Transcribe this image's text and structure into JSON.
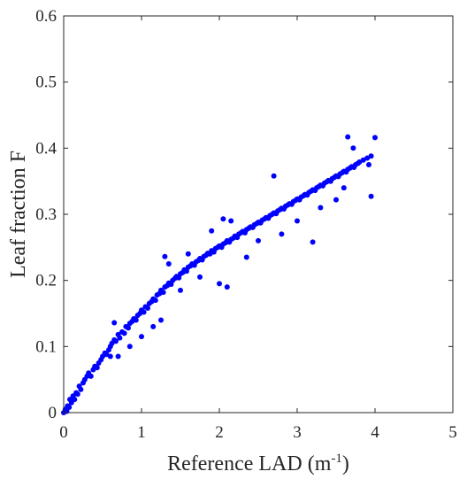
{
  "chart_data": {
    "type": "scatter",
    "title": "",
    "xlabel": "Reference LAD (m",
    "xlabel_sup": "-1",
    "xlabel_close": ")",
    "ylabel": "Leaf fraction F",
    "xlim": [
      0,
      5
    ],
    "ylim": [
      0,
      0.6
    ],
    "xticks": [
      "0",
      "1",
      "2",
      "3",
      "4",
      "5"
    ],
    "yticks": [
      "0",
      "0.1",
      "0.2",
      "0.3",
      "0.4",
      "0.5",
      "0.6"
    ],
    "grid": false,
    "marker_color": "#0000ff",
    "series": [
      {
        "points": [
          [
            0.0,
            0.0
          ],
          [
            0.02,
            0.005
          ],
          [
            0.04,
            0.002
          ],
          [
            0.05,
            0.01
          ],
          [
            0.07,
            0.008
          ],
          [
            0.08,
            0.02
          ],
          [
            0.1,
            0.015
          ],
          [
            0.12,
            0.025
          ],
          [
            0.14,
            0.02
          ],
          [
            0.16,
            0.03
          ],
          [
            0.18,
            0.028
          ],
          [
            0.2,
            0.04
          ],
          [
            0.22,
            0.035
          ],
          [
            0.25,
            0.045
          ],
          [
            0.27,
            0.05
          ],
          [
            0.3,
            0.055
          ],
          [
            0.32,
            0.06
          ],
          [
            0.35,
            0.055
          ],
          [
            0.38,
            0.065
          ],
          [
            0.4,
            0.07
          ],
          [
            0.43,
            0.068
          ],
          [
            0.45,
            0.075
          ],
          [
            0.48,
            0.08
          ],
          [
            0.5,
            0.085
          ],
          [
            0.53,
            0.09
          ],
          [
            0.55,
            0.088
          ],
          [
            0.58,
            0.095
          ],
          [
            0.6,
            0.1
          ],
          [
            0.62,
            0.105
          ],
          [
            0.65,
            0.11
          ],
          [
            0.67,
            0.108
          ],
          [
            0.7,
            0.118
          ],
          [
            0.72,
            0.113
          ],
          [
            0.75,
            0.122
          ],
          [
            0.78,
            0.12
          ],
          [
            0.8,
            0.13
          ],
          [
            0.83,
            0.128
          ],
          [
            0.85,
            0.135
          ],
          [
            0.88,
            0.138
          ],
          [
            0.9,
            0.142
          ],
          [
            0.93,
            0.14
          ],
          [
            0.95,
            0.147
          ],
          [
            0.98,
            0.15
          ],
          [
            1.0,
            0.155
          ],
          [
            1.03,
            0.152
          ],
          [
            1.05,
            0.16
          ],
          [
            1.08,
            0.158
          ],
          [
            1.1,
            0.165
          ],
          [
            1.13,
            0.168
          ],
          [
            1.15,
            0.172
          ],
          [
            1.18,
            0.17
          ],
          [
            1.2,
            0.178
          ],
          [
            1.23,
            0.18
          ],
          [
            1.25,
            0.185
          ],
          [
            1.28,
            0.182
          ],
          [
            1.3,
            0.19
          ],
          [
            1.33,
            0.192
          ],
          [
            1.35,
            0.196
          ],
          [
            1.38,
            0.194
          ],
          [
            1.4,
            0.2
          ],
          [
            1.43,
            0.203
          ],
          [
            1.45,
            0.206
          ],
          [
            1.48,
            0.204
          ],
          [
            1.5,
            0.21
          ],
          [
            1.53,
            0.212
          ],
          [
            1.55,
            0.216
          ],
          [
            1.58,
            0.214
          ],
          [
            1.6,
            0.22
          ],
          [
            1.63,
            0.222
          ],
          [
            1.65,
            0.225
          ],
          [
            1.68,
            0.223
          ],
          [
            1.7,
            0.228
          ],
          [
            1.73,
            0.23
          ],
          [
            1.75,
            0.233
          ],
          [
            1.78,
            0.231
          ],
          [
            1.8,
            0.236
          ],
          [
            1.83,
            0.238
          ],
          [
            1.85,
            0.241
          ],
          [
            1.88,
            0.24
          ],
          [
            1.9,
            0.245
          ],
          [
            1.93,
            0.243
          ],
          [
            1.95,
            0.248
          ],
          [
            1.98,
            0.25
          ],
          [
            2.0,
            0.252
          ],
          [
            2.03,
            0.25
          ],
          [
            2.05,
            0.255
          ],
          [
            2.08,
            0.257
          ],
          [
            2.1,
            0.26
          ],
          [
            2.13,
            0.258
          ],
          [
            2.15,
            0.262
          ],
          [
            2.18,
            0.264
          ],
          [
            2.2,
            0.267
          ],
          [
            2.23,
            0.265
          ],
          [
            2.25,
            0.27
          ],
          [
            2.28,
            0.272
          ],
          [
            2.3,
            0.274
          ],
          [
            2.33,
            0.272
          ],
          [
            2.35,
            0.277
          ],
          [
            2.38,
            0.279
          ],
          [
            2.4,
            0.281
          ],
          [
            2.43,
            0.28
          ],
          [
            2.45,
            0.284
          ],
          [
            2.48,
            0.286
          ],
          [
            2.5,
            0.288
          ],
          [
            2.53,
            0.287
          ],
          [
            2.55,
            0.291
          ],
          [
            2.58,
            0.293
          ],
          [
            2.6,
            0.295
          ],
          [
            2.63,
            0.294
          ],
          [
            2.65,
            0.298
          ],
          [
            2.68,
            0.3
          ],
          [
            2.7,
            0.302
          ],
          [
            2.73,
            0.301
          ],
          [
            2.75,
            0.305
          ],
          [
            2.78,
            0.307
          ],
          [
            2.8,
            0.309
          ],
          [
            2.83,
            0.308
          ],
          [
            2.85,
            0.312
          ],
          [
            2.88,
            0.314
          ],
          [
            2.9,
            0.316
          ],
          [
            2.93,
            0.315
          ],
          [
            2.95,
            0.319
          ],
          [
            2.98,
            0.321
          ],
          [
            3.0,
            0.323
          ],
          [
            3.03,
            0.322
          ],
          [
            3.05,
            0.326
          ],
          [
            3.08,
            0.328
          ],
          [
            3.1,
            0.33
          ],
          [
            3.13,
            0.329
          ],
          [
            3.15,
            0.333
          ],
          [
            3.18,
            0.335
          ],
          [
            3.2,
            0.337
          ],
          [
            3.23,
            0.336
          ],
          [
            3.25,
            0.34
          ],
          [
            3.28,
            0.342
          ],
          [
            3.3,
            0.344
          ],
          [
            3.33,
            0.343
          ],
          [
            3.35,
            0.347
          ],
          [
            3.38,
            0.349
          ],
          [
            3.4,
            0.351
          ],
          [
            3.43,
            0.35
          ],
          [
            3.45,
            0.354
          ],
          [
            3.48,
            0.356
          ],
          [
            3.5,
            0.358
          ],
          [
            3.53,
            0.357
          ],
          [
            3.55,
            0.361
          ],
          [
            3.58,
            0.363
          ],
          [
            3.6,
            0.365
          ],
          [
            3.63,
            0.364
          ],
          [
            3.65,
            0.368
          ],
          [
            3.68,
            0.37
          ],
          [
            3.7,
            0.372
          ],
          [
            3.73,
            0.371
          ],
          [
            3.75,
            0.375
          ],
          [
            3.78,
            0.377
          ],
          [
            3.8,
            0.379
          ],
          [
            3.85,
            0.382
          ],
          [
            3.9,
            0.385
          ],
          [
            3.95,
            0.388
          ],
          [
            4.0,
            0.416
          ],
          [
            0.65,
            0.136
          ],
          [
            1.3,
            0.236
          ],
          [
            2.05,
            0.293
          ],
          [
            2.7,
            0.358
          ],
          [
            3.2,
            0.258
          ],
          [
            3.65,
            0.417
          ],
          [
            3.72,
            0.4
          ],
          [
            3.95,
            0.327
          ],
          [
            3.92,
            0.375
          ],
          [
            3.5,
            0.322
          ],
          [
            2.0,
            0.195
          ],
          [
            2.1,
            0.19
          ],
          [
            1.5,
            0.185
          ],
          [
            1.25,
            0.14
          ],
          [
            1.15,
            0.13
          ],
          [
            0.85,
            0.1
          ],
          [
            0.6,
            0.085
          ],
          [
            2.5,
            0.26
          ],
          [
            2.8,
            0.27
          ],
          [
            3.0,
            0.29
          ],
          [
            1.9,
            0.275
          ],
          [
            2.15,
            0.29
          ],
          [
            1.6,
            0.24
          ],
          [
            1.35,
            0.225
          ],
          [
            1.0,
            0.115
          ],
          [
            0.7,
            0.085
          ],
          [
            3.3,
            0.31
          ],
          [
            3.6,
            0.34
          ],
          [
            2.35,
            0.235
          ],
          [
            1.75,
            0.205
          ]
        ]
      }
    ]
  }
}
